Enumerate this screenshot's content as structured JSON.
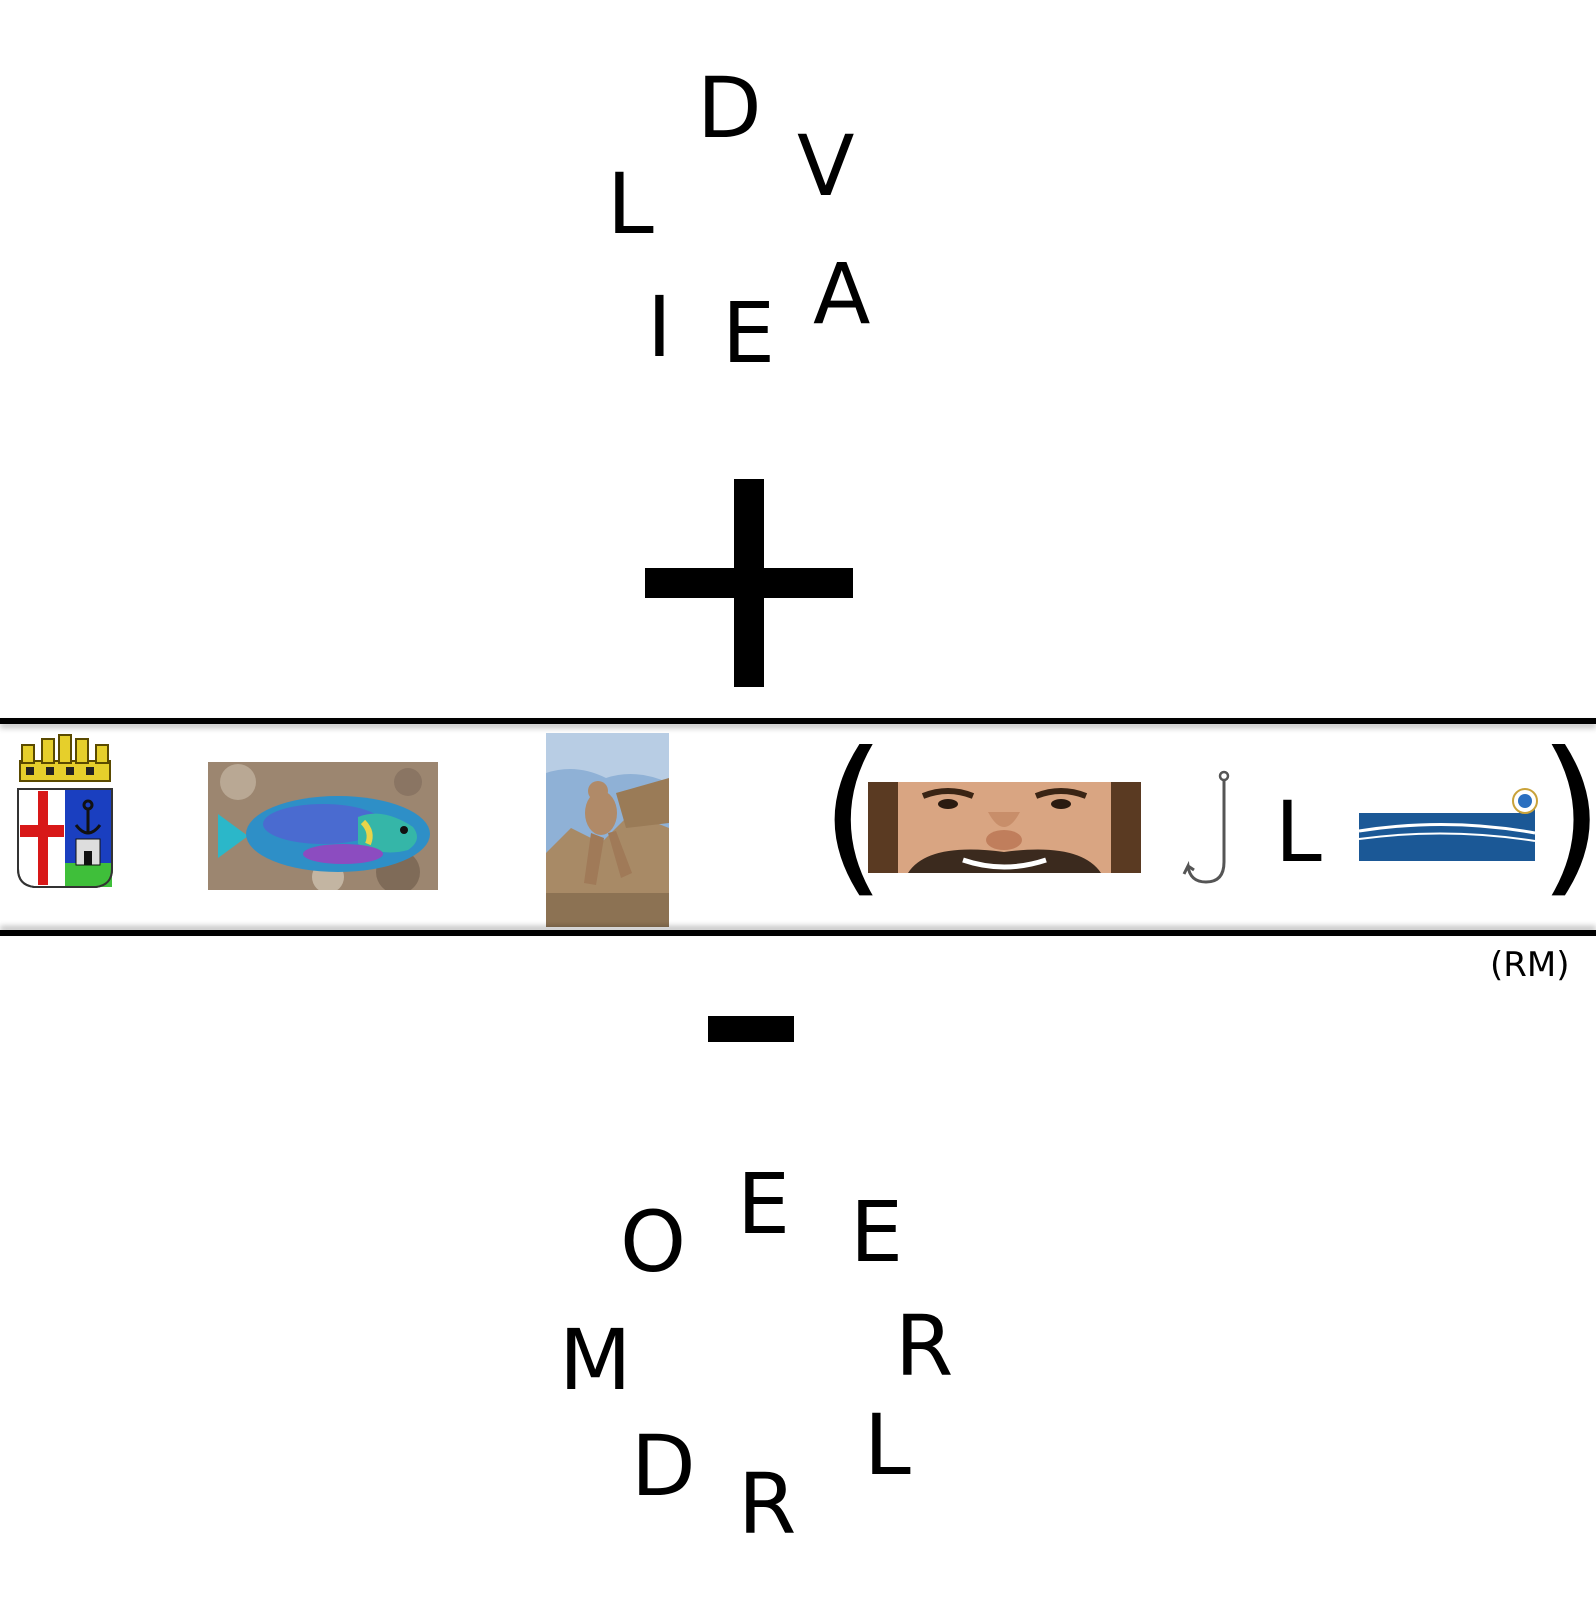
{
  "puzzle": {
    "top_letters": [
      "D",
      "V",
      "L",
      "A",
      "I",
      "E"
    ],
    "plus_sign": "+",
    "minus_sign": "-",
    "middle_row": {
      "open_paren": "(",
      "letter": "L",
      "close_paren": ")",
      "province": "(RM)",
      "pictures": [
        "coat-of-arms",
        "parrotfish",
        "statue",
        "smiling-face",
        "fish-hook",
        "logo"
      ]
    },
    "bottom_letters": [
      "E",
      "O",
      "E",
      "M",
      "R",
      "D",
      "L",
      "R"
    ]
  },
  "colors": {
    "fish_body": "#2e8fc7",
    "shield_red": "#d81818",
    "shield_blue": "#1a3fc0",
    "crown_gold": "#e6cf2b",
    "logo_blue": "#1b5896",
    "sky": "#8fb1d6",
    "rock": "#a88a66"
  }
}
